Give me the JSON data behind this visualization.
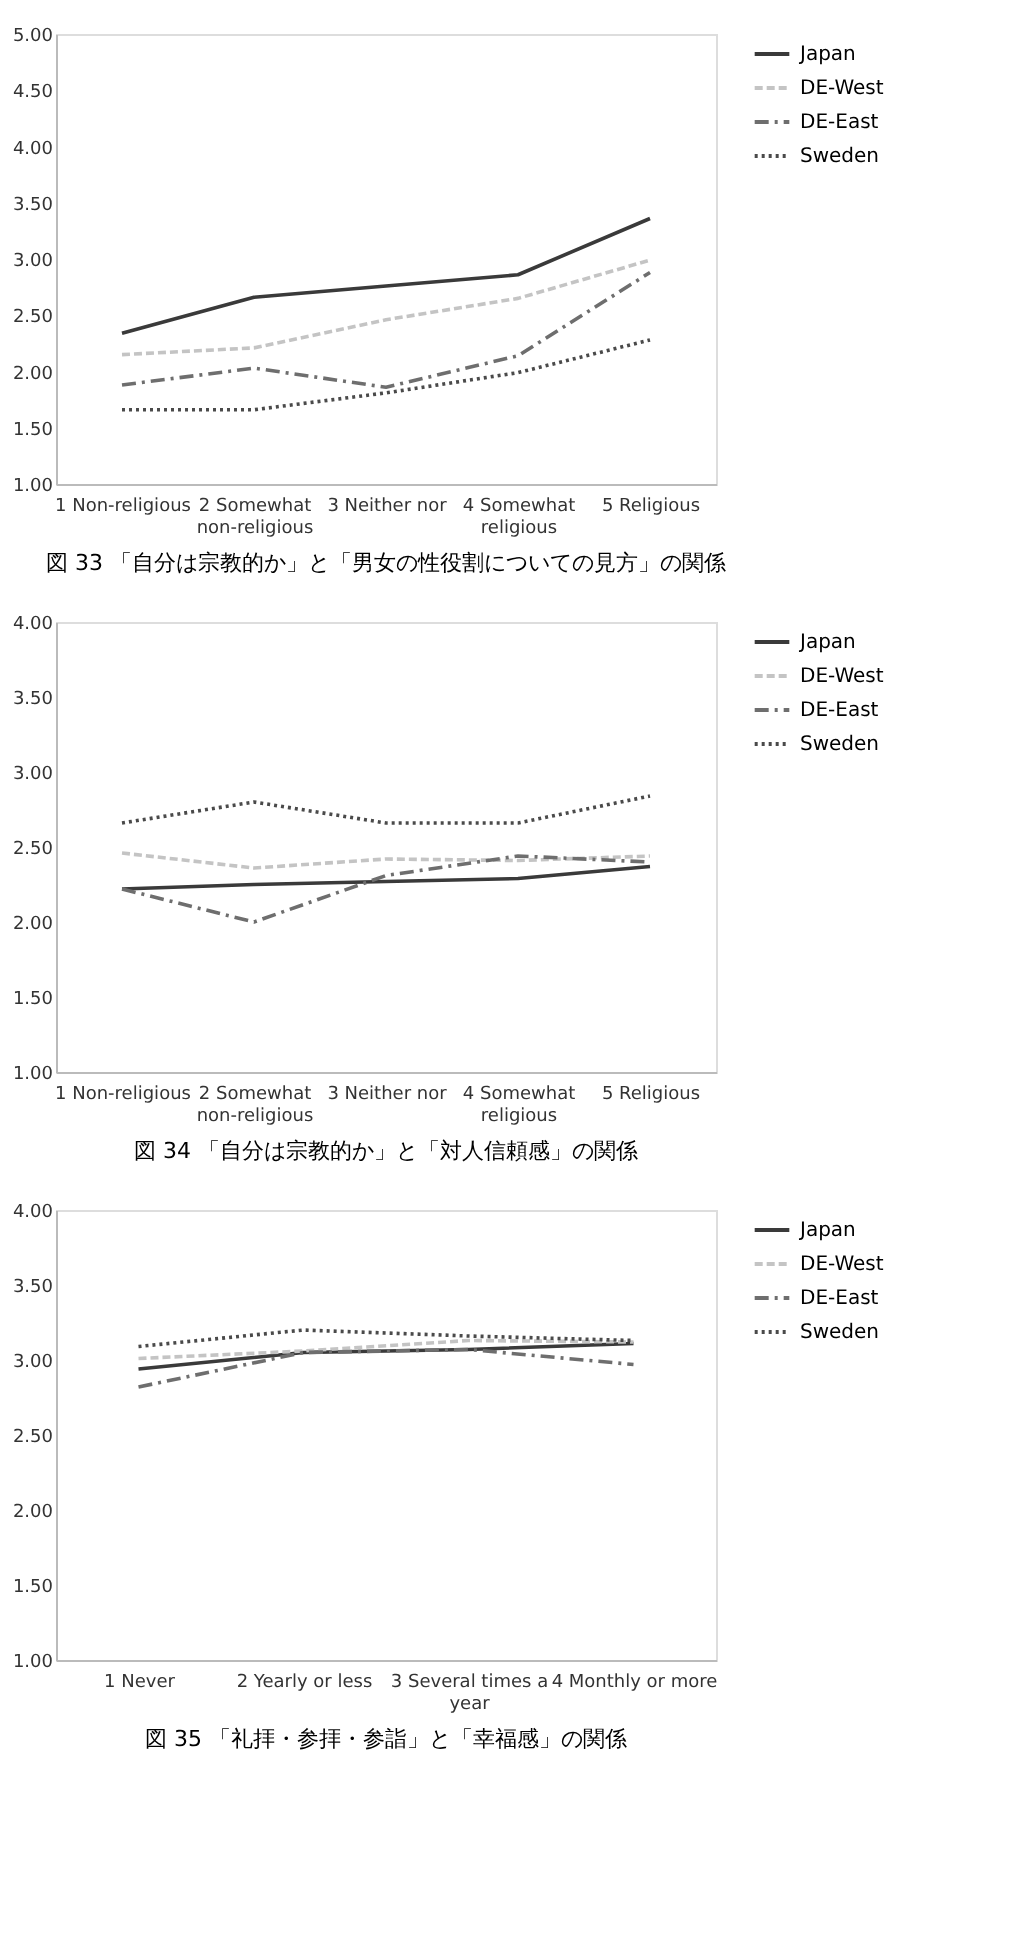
{
  "chart_data": [
    {
      "type": "line",
      "title": "図 33 「自分は宗教的か」と「男女の性役割についての見方」の関係",
      "categories": [
        "1 Non-religious",
        "2 Somewhat non-religious",
        "3 Neither nor",
        "4 Somewhat religious",
        "5 Religious"
      ],
      "series": [
        {
          "name": "Japan",
          "color": "#3a3a3a",
          "line_style": "solid",
          "values": [
            2.34,
            2.66,
            2.76,
            2.86,
            3.36
          ]
        },
        {
          "name": "DE-West",
          "color": "#c4c4c4",
          "line_style": "dashed",
          "values": [
            2.15,
            2.21,
            2.46,
            2.65,
            2.99
          ]
        },
        {
          "name": "DE-East",
          "color": "#6e6e6e",
          "line_style": "dashdot",
          "values": [
            1.88,
            2.03,
            1.86,
            2.14,
            2.88
          ]
        },
        {
          "name": "Sweden",
          "color": "#4a4a4a",
          "line_style": "dotted",
          "values": [
            1.66,
            1.66,
            1.81,
            1.99,
            2.28
          ]
        }
      ],
      "ylim": [
        1,
        5
      ],
      "yticks": [
        {
          "value": 1,
          "label": "1.00"
        },
        {
          "value": 1.5,
          "label": "1.50"
        },
        {
          "value": 2,
          "label": "2.00"
        },
        {
          "value": 2.5,
          "label": "2.50"
        },
        {
          "value": 3,
          "label": "3.00"
        },
        {
          "value": 3.5,
          "label": "3.50"
        },
        {
          "value": 4,
          "label": "4.00"
        },
        {
          "value": 4.5,
          "label": "4.50"
        },
        {
          "value": 5,
          "label": "5.00"
        }
      ],
      "grid": false,
      "legend": "right"
    },
    {
      "type": "line",
      "title": "図 34 「自分は宗教的か」と「対人信頼感」の関係",
      "categories": [
        "1 Non-religious",
        "2 Somewhat non-religious",
        "3 Neither nor",
        "4 Somewhat religious",
        "5 Religious"
      ],
      "series": [
        {
          "name": "Japan",
          "color": "#3a3a3a",
          "line_style": "solid",
          "values": [
            2.22,
            2.25,
            2.27,
            2.29,
            2.37
          ]
        },
        {
          "name": "DE-West",
          "color": "#c4c4c4",
          "line_style": "dashed",
          "values": [
            2.46,
            2.36,
            2.42,
            2.41,
            2.44
          ]
        },
        {
          "name": "DE-East",
          "color": "#6e6e6e",
          "line_style": "dashdot",
          "values": [
            2.22,
            2.0,
            2.31,
            2.44,
            2.4
          ]
        },
        {
          "name": "Sweden",
          "color": "#4a4a4a",
          "line_style": "dotted",
          "values": [
            2.66,
            2.8,
            2.66,
            2.66,
            2.84
          ]
        }
      ],
      "ylim": [
        1,
        4
      ],
      "yticks": [
        {
          "value": 1,
          "label": "1.00"
        },
        {
          "value": 1.5,
          "label": "1.50"
        },
        {
          "value": 2,
          "label": "2.00"
        },
        {
          "value": 2.5,
          "label": "2.50"
        },
        {
          "value": 3,
          "label": "3.00"
        },
        {
          "value": 3.5,
          "label": "3.50"
        },
        {
          "value": 4,
          "label": "4.00"
        }
      ],
      "grid": false,
      "legend": "right"
    },
    {
      "type": "line",
      "title": "図 35 「礼拝・参拝・参詣」と「幸福感」の関係",
      "categories": [
        "1 Never",
        "2 Yearly or less",
        "3 Several times a year",
        "4 Monthly or more"
      ],
      "series": [
        {
          "name": "Japan",
          "color": "#3a3a3a",
          "line_style": "solid",
          "values": [
            2.94,
            3.05,
            3.07,
            3.11
          ]
        },
        {
          "name": "DE-West",
          "color": "#c4c4c4",
          "line_style": "dashed",
          "values": [
            3.01,
            3.06,
            3.13,
            3.12
          ]
        },
        {
          "name": "DE-East",
          "color": "#6e6e6e",
          "line_style": "dashdot",
          "values": [
            2.82,
            3.05,
            3.07,
            2.97
          ]
        },
        {
          "name": "Sweden",
          "color": "#4a4a4a",
          "line_style": "dotted",
          "values": [
            3.09,
            3.2,
            3.16,
            3.13
          ]
        }
      ],
      "ylim": [
        1,
        4
      ],
      "yticks": [
        {
          "value": 1,
          "label": "1.00"
        },
        {
          "value": 1.5,
          "label": "1.50"
        },
        {
          "value": 2,
          "label": "2.00"
        },
        {
          "value": 2.5,
          "label": "2.50"
        },
        {
          "value": 3,
          "label": "3.00"
        },
        {
          "value": 3.5,
          "label": "3.50"
        },
        {
          "value": 4,
          "label": "4.00"
        }
      ],
      "grid": false,
      "legend": "right"
    }
  ]
}
